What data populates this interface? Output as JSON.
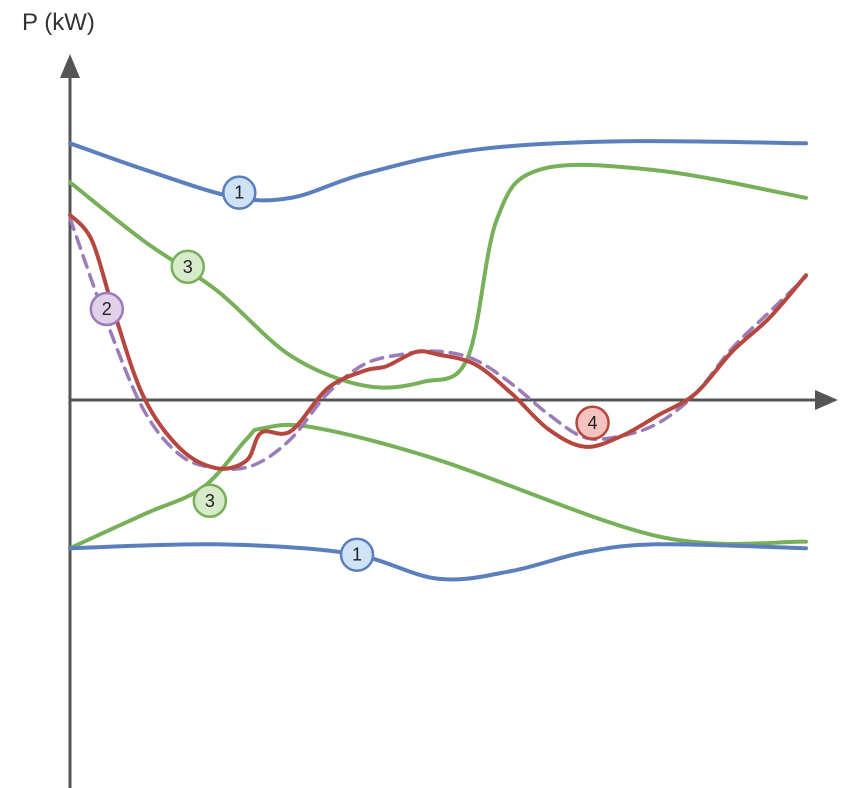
{
  "chart_data": {
    "type": "line",
    "ylabel": "P (kW)",
    "xlabel": "",
    "title": "",
    "xlim": [
      0,
      100
    ],
    "ylim": [
      -50,
      50
    ],
    "grid": false,
    "legend": "none",
    "colors": {
      "axis": "#555555",
      "blue": "#5b7fbd",
      "green": "#78b05a",
      "red": "#b5473f",
      "purple": "#9b7bb8"
    },
    "series": [
      {
        "id": "curve-1-upper",
        "color": "#5b7fbd",
        "style": "solid",
        "x": [
          0,
          10,
          22,
          30,
          40,
          55,
          75,
          100
        ],
        "y": [
          39.5,
          35.5,
          31.3,
          31.1,
          34.8,
          38.5,
          39.8,
          39.5
        ]
      },
      {
        "id": "curve-1-lower",
        "color": "#5b7fbd",
        "style": "solid",
        "x": [
          0,
          20,
          38,
          50,
          60,
          70,
          80,
          100
        ],
        "y": [
          -22.8,
          -22.2,
          -23.6,
          -27.5,
          -26.3,
          -23.4,
          -22.2,
          -22.8
        ]
      },
      {
        "id": "curve-3-upper",
        "color": "#78b05a",
        "style": "solid",
        "x": [
          0,
          10,
          20,
          30,
          40,
          48,
          54,
          58,
          64,
          80,
          100
        ],
        "y": [
          33.5,
          24.5,
          16.8,
          6.8,
          2.2,
          2.8,
          6.4,
          27.8,
          35.5,
          35.3,
          31.1
        ]
      },
      {
        "id": "curve-3-lower",
        "color": "#78b05a",
        "style": "solid",
        "x": [
          0,
          10,
          18,
          24,
          26,
          33,
          50,
          80,
          100
        ],
        "y": [
          -22.8,
          -17.6,
          -13.5,
          -6.0,
          -4.4,
          -4.2,
          -9.2,
          -21.0,
          -21.8
        ]
      },
      {
        "id": "curve-2",
        "color": "#9b7bb8",
        "style": "dashed",
        "x": [
          0,
          5,
          10,
          15,
          20,
          25,
          30,
          35,
          40,
          45,
          50,
          55,
          60,
          65,
          70,
          75,
          80,
          85,
          90,
          95,
          100
        ],
        "y": [
          28.0,
          12.0,
          -1.5,
          -8.5,
          -10.5,
          -10.0,
          -6.0,
          1.0,
          5.5,
          7.0,
          7.5,
          6.2,
          2.5,
          -2.2,
          -5.8,
          -5.5,
          -3.5,
          1.0,
          8.0,
          13.5,
          19.0
        ]
      },
      {
        "id": "curve-4",
        "color": "#b5473f",
        "style": "solid",
        "x": [
          0,
          3,
          6,
          10,
          15,
          20,
          24,
          26,
          30,
          35,
          40,
          43,
          47,
          50,
          55,
          60,
          65,
          70,
          75,
          80,
          85,
          90,
          95,
          100
        ],
        "y": [
          28.5,
          24.5,
          13.5,
          0.5,
          -7.5,
          -10.5,
          -9.3,
          -5.0,
          -4.8,
          1.8,
          4.5,
          5.2,
          7.4,
          7.0,
          5.5,
          1.0,
          -4.5,
          -7.2,
          -5.5,
          -2.3,
          1.0,
          7.5,
          12.6,
          19.2
        ]
      }
    ],
    "markers": [
      {
        "label": "1",
        "x": 23,
        "y": 31.9,
        "fill": "#cfe2f6",
        "stroke": "#5b7fbd"
      },
      {
        "label": "1",
        "x": 39,
        "y": -23.8,
        "fill": "#cfe2f6",
        "stroke": "#5b7fbd"
      },
      {
        "label": "3",
        "x": 16,
        "y": 20.5,
        "fill": "#d7ebcb",
        "stroke": "#78b05a"
      },
      {
        "label": "3",
        "x": 19,
        "y": -15.5,
        "fill": "#d7ebcb",
        "stroke": "#78b05a"
      },
      {
        "label": "2",
        "x": 5,
        "y": 14.0,
        "fill": "#e0d0ea",
        "stroke": "#9b7bb8"
      },
      {
        "label": "4",
        "x": 71,
        "y": -3.5,
        "fill": "#f4c2bf",
        "stroke": "#b5473f"
      }
    ]
  }
}
